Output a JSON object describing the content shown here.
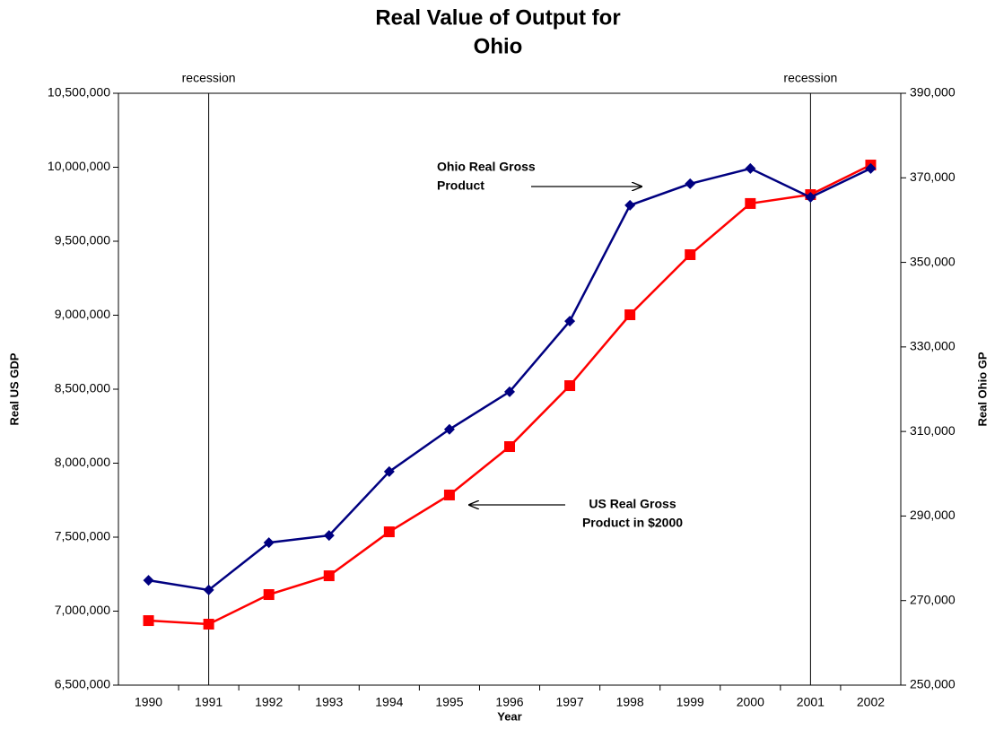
{
  "chart_data": {
    "type": "line",
    "title": [
      "Real Value of Output for",
      "Ohio"
    ],
    "x_label": "Year",
    "y_label": "Real US GDP",
    "y2_label": "Real Ohio GP",
    "categories": [
      "1990",
      "1991",
      "1992",
      "1993",
      "1994",
      "1995",
      "1996",
      "1997",
      "1998",
      "1999",
      "2000",
      "2001",
      "2002"
    ],
    "series": [
      {
        "name": "US Real Gross Product in $2000",
        "color": "#ff0000",
        "marker": "square",
        "values": [
          6936000,
          6912000,
          7112000,
          7239000,
          7536000,
          7785000,
          8112000,
          8524000,
          9003000,
          9409000,
          9755000,
          9815000,
          10015000
        ]
      },
      {
        "name": "Ohio Real Gross Product",
        "color": "#000080",
        "marker": "diamond",
        "axis": "y2",
        "values": [
          274800,
          272500,
          283700,
          285400,
          300500,
          310500,
          319400,
          336100,
          363500,
          368600,
          372200,
          365400,
          372200
        ]
      }
    ],
    "ylim": [
      6500000,
      10500000
    ],
    "yticks": [
      {
        "value": 6500000,
        "label": "6,500,000"
      },
      {
        "value": 7000000,
        "label": "7,000,000"
      },
      {
        "value": 7500000,
        "label": "7,500,000"
      },
      {
        "value": 8000000,
        "label": "8,000,000"
      },
      {
        "value": 8500000,
        "label": "8,500,000"
      },
      {
        "value": 9000000,
        "label": "9,000,000"
      },
      {
        "value": 9500000,
        "label": "9,500,000"
      },
      {
        "value": 10000000,
        "label": "10,000,000"
      },
      {
        "value": 10500000,
        "label": "10,500,000"
      }
    ],
    "y2lim": [
      250000,
      390000
    ],
    "y2ticks": [
      {
        "value": 250000,
        "label": "250,000"
      },
      {
        "value": 270000,
        "label": "270,000"
      },
      {
        "value": 290000,
        "label": "290,000"
      },
      {
        "value": 310000,
        "label": "310,000"
      },
      {
        "value": 330000,
        "label": "330,000"
      },
      {
        "value": 350000,
        "label": "350,000"
      },
      {
        "value": 370000,
        "label": "370,000"
      },
      {
        "value": 390000,
        "label": "390,000"
      }
    ],
    "recessions": [
      {
        "label": "recession",
        "x": "1991"
      },
      {
        "label": "recession",
        "x": "2001"
      }
    ],
    "annotations": [
      {
        "lines": [
          "Ohio Real Gross",
          "Product"
        ]
      },
      {
        "lines": [
          "US Real Gross",
          "Product in $2000"
        ]
      }
    ]
  }
}
